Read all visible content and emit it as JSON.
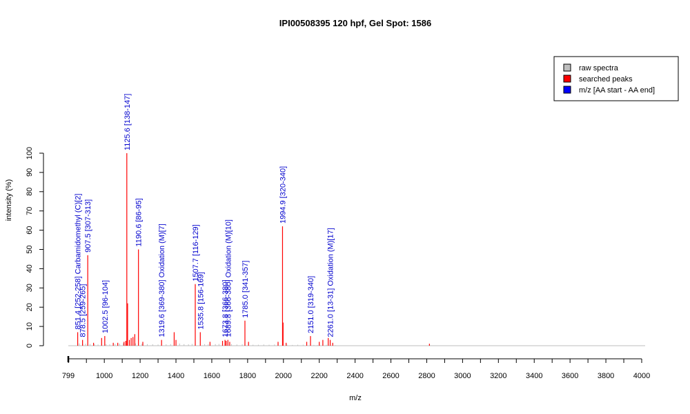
{
  "chart_data": {
    "type": "bar",
    "title": "IPI00508395  120 hpf, Gel Spot: 1586",
    "xlabel": "m/z",
    "ylabel": "intensity (%)",
    "xlim": [
      799,
      4000
    ],
    "ylim": [
      0,
      100
    ],
    "x_ticks": [
      "799",
      "1000",
      "1200",
      "1400",
      "1600",
      "1800",
      "2000",
      "2200",
      "2400",
      "2600",
      "2800",
      "3000",
      "3200",
      "3400",
      "3600",
      "3800",
      "4000"
    ],
    "y_ticks": [
      "0",
      "10",
      "20",
      "30",
      "40",
      "50",
      "60",
      "70",
      "80",
      "90",
      "100"
    ],
    "grid": false,
    "legend_position": "top-right",
    "legend": [
      {
        "label": "raw spectra",
        "color": "#bebebe"
      },
      {
        "label": "searched peaks",
        "color": "#ff0000"
      },
      {
        "label": "m/z [AA start - AA end]",
        "color": "#0000ff"
      }
    ],
    "raw_spectra": {
      "color": "#bebebe",
      "points": [
        [
          860,
          1.2
        ],
        [
          880,
          0.8
        ],
        [
          895,
          1.0
        ],
        [
          920,
          0.9
        ],
        [
          945,
          0.7
        ],
        [
          965,
          0.6
        ],
        [
          1010,
          0.8
        ],
        [
          1030,
          0.7
        ],
        [
          1060,
          0.9
        ],
        [
          1085,
          1.1
        ],
        [
          1105,
          1.3
        ],
        [
          1140,
          1.5
        ],
        [
          1175,
          1.2
        ],
        [
          1210,
          1.0
        ],
        [
          1240,
          0.8
        ],
        [
          1270,
          0.7
        ],
        [
          1300,
          0.6
        ],
        [
          1345,
          0.7
        ],
        [
          1370,
          0.8
        ],
        [
          1420,
          1.1
        ],
        [
          1445,
          0.8
        ],
        [
          1470,
          0.7
        ],
        [
          1490,
          0.9
        ],
        [
          1560,
          0.8
        ],
        [
          1580,
          0.7
        ],
        [
          1620,
          0.8
        ],
        [
          1640,
          0.9
        ],
        [
          1710,
          0.8
        ],
        [
          1740,
          0.6
        ],
        [
          1770,
          0.7
        ],
        [
          1830,
          0.5
        ],
        [
          1860,
          0.5
        ],
        [
          1890,
          0.6
        ],
        [
          1920,
          0.5
        ],
        [
          1950,
          0.6
        ],
        [
          2020,
          0.5
        ],
        [
          2050,
          0.4
        ],
        [
          2080,
          0.5
        ],
        [
          2110,
          0.5
        ],
        [
          2170,
          0.4
        ],
        [
          2190,
          0.4
        ],
        [
          2240,
          0.5
        ],
        [
          2290,
          0.3
        ]
      ]
    },
    "searched_peaks": {
      "color": "#ff0000",
      "points": [
        [
          851.4,
          7
        ],
        [
          878.5,
          3
        ],
        [
          907.5,
          47
        ],
        [
          940,
          1.5
        ],
        [
          985,
          4
        ],
        [
          1002.5,
          5
        ],
        [
          1050,
          1.5
        ],
        [
          1075,
          1.5
        ],
        [
          1110,
          2
        ],
        [
          1120,
          2.5
        ],
        [
          1125.6,
          100
        ],
        [
          1130,
          22
        ],
        [
          1140,
          3
        ],
        [
          1150,
          4
        ],
        [
          1160,
          4.5
        ],
        [
          1170,
          6
        ],
        [
          1190.6,
          50
        ],
        [
          1215,
          2
        ],
        [
          1319.6,
          3
        ],
        [
          1390,
          7
        ],
        [
          1400,
          3
        ],
        [
          1507.7,
          32
        ],
        [
          1535.8,
          7
        ],
        [
          1590,
          2
        ],
        [
          1660,
          2.5
        ],
        [
          1673.8,
          3
        ],
        [
          1680,
          2.5
        ],
        [
          1689.8,
          3
        ],
        [
          1700,
          2
        ],
        [
          1785.0,
          13
        ],
        [
          1805,
          2
        ],
        [
          1970,
          2
        ],
        [
          1994.9,
          62
        ],
        [
          1998,
          12
        ],
        [
          2015,
          1.5
        ],
        [
          2130,
          2
        ],
        [
          2151.0,
          5
        ],
        [
          2200,
          2
        ],
        [
          2220,
          3
        ],
        [
          2250,
          4
        ],
        [
          2261.0,
          3
        ],
        [
          2275,
          1.5
        ],
        [
          2815,
          1
        ]
      ]
    },
    "annotations": [
      {
        "x": 851.4,
        "y": 7,
        "label": "851.4 [252-258] Carbamidomethyl (C)[2]"
      },
      {
        "x": 878.5,
        "y": 3,
        "label": "878.5 [259-265]"
      },
      {
        "x": 907.5,
        "y": 47,
        "label": "907.5 [307-313]"
      },
      {
        "x": 1002.5,
        "y": 5,
        "label": "1002.5 [96-104]"
      },
      {
        "x": 1125.6,
        "y": 100,
        "label": "1125.6 [138-147]"
      },
      {
        "x": 1190.6,
        "y": 50,
        "label": "1190.6 [86-95]"
      },
      {
        "x": 1319.6,
        "y": 3,
        "label": "1319.6 [369-380] Oxidation (M)[7]"
      },
      {
        "x": 1507.7,
        "y": 32,
        "label": "1507.7 [116-129]"
      },
      {
        "x": 1535.8,
        "y": 7,
        "label": "1535.8 [156-169]"
      },
      {
        "x": 1673.8,
        "y": 3,
        "label": "1673.8 [366-380]"
      },
      {
        "x": 1689.8,
        "y": 3,
        "label": "1689.8 [366-380] Oxidation (M)[10]"
      },
      {
        "x": 1785.0,
        "y": 13,
        "label": "1785.0 [341-357]"
      },
      {
        "x": 1994.9,
        "y": 62,
        "label": "1994.9 [320-340]"
      },
      {
        "x": 2151.0,
        "y": 5,
        "label": "2151.0 [319-340]"
      },
      {
        "x": 2261.0,
        "y": 3,
        "label": "2261.0 [13-31] Oxidation (M)[17]"
      }
    ]
  }
}
